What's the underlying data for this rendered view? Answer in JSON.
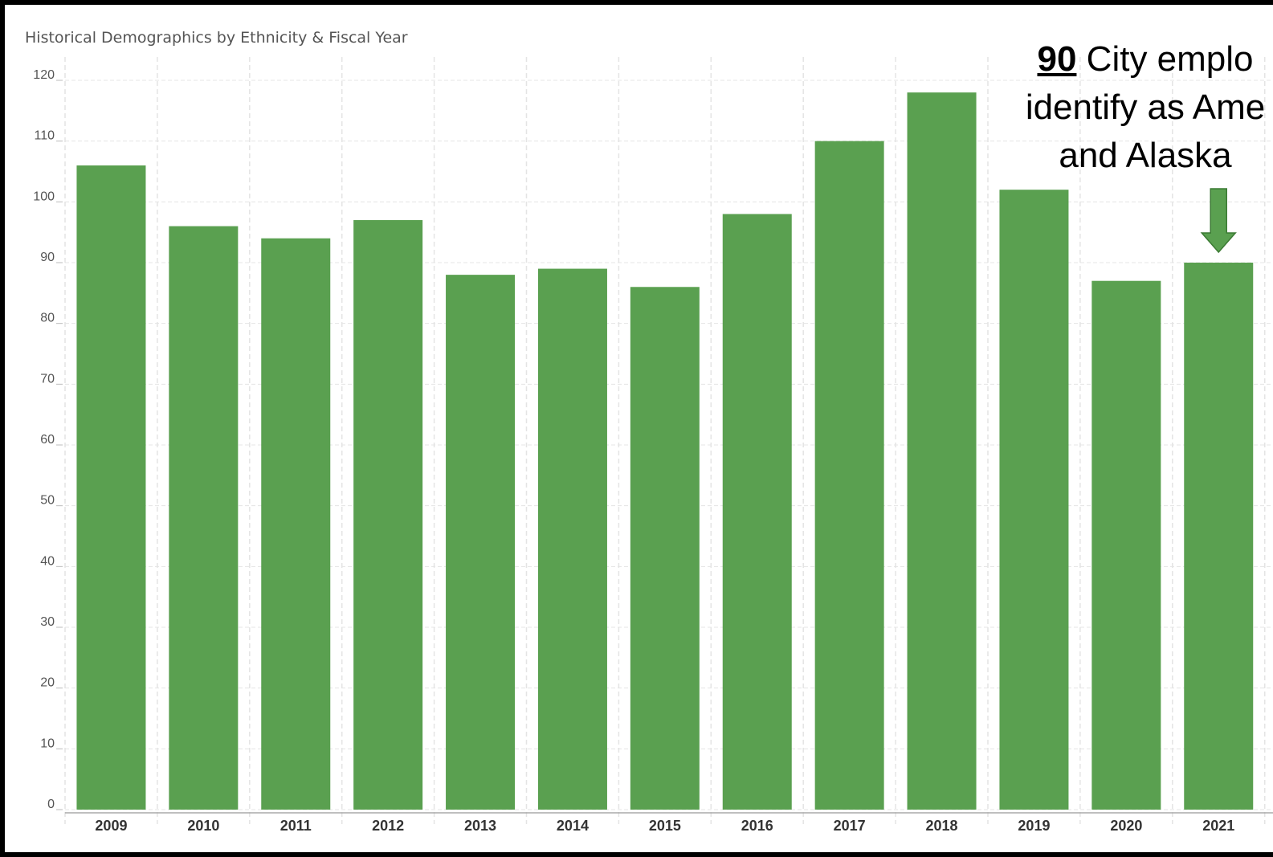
{
  "chart_data": {
    "type": "bar",
    "title": "Historical Demographics by Ethnicity & Fiscal Year",
    "categories": [
      "2009",
      "2010",
      "2011",
      "2012",
      "2013",
      "2014",
      "2015",
      "2016",
      "2017",
      "2018",
      "2019",
      "2020",
      "2021"
    ],
    "values": [
      106,
      96,
      94,
      97,
      88,
      89,
      86,
      98,
      110,
      118,
      102,
      87,
      90
    ],
    "ylim": [
      0,
      120
    ],
    "yticks": [
      0,
      10,
      20,
      30,
      40,
      50,
      60,
      70,
      80,
      90,
      100,
      110,
      120
    ],
    "xlabel": "",
    "ylabel": "",
    "grid": true,
    "bar_color": "#5aa050",
    "annotation": {
      "value": "90",
      "line1": "City emplo",
      "line2": "identify as Ame",
      "line3": "and Alaska",
      "target_category": "2021",
      "arrow_color": "#5aa050"
    }
  }
}
